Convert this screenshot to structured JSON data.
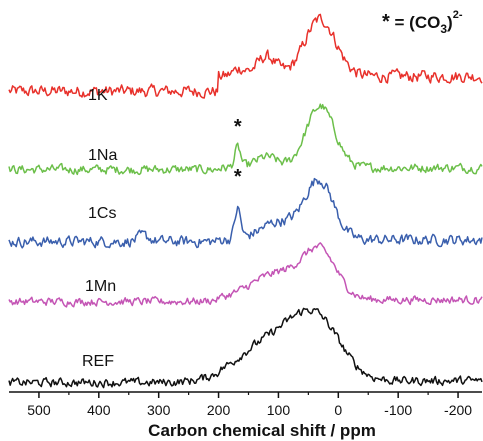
{
  "chart_data": {
    "type": "line",
    "xlabel": "Carbon chemical shift /  ppm",
    "xlim": [
      550,
      -240
    ],
    "x_ticks": [
      500,
      400,
      300,
      200,
      100,
      0,
      -100,
      -200
    ],
    "x_tick_labels": [
      "500",
      "400",
      "300",
      "200",
      "100",
      "0",
      "-100",
      "-200"
    ],
    "annotation": {
      "star": "*",
      "equals": " = (CO",
      "sub": "3",
      "close": ")",
      "sup": "2-"
    },
    "series": [
      {
        "name": "1K",
        "color": "#e8312b",
        "baseline": 0.85,
        "peaks": [
          [
            30,
            2.6,
            26
          ],
          [
            120,
            0.9,
            16
          ],
          [
            165,
            0.35,
            10
          ]
        ],
        "noise": 0.42
      },
      {
        "name": "1Na",
        "color": "#6cbf4a",
        "baseline": 0.1,
        "peaks": [
          [
            30,
            2.8,
            24
          ],
          [
            120,
            0.5,
            18
          ],
          [
            168,
            0.9,
            5
          ]
        ],
        "noise": 0.32,
        "star_at": 168
      },
      {
        "name": "1Cs",
        "color": "#3a5fad",
        "baseline": 0.1,
        "peaks": [
          [
            32,
            2.7,
            24
          ],
          [
            100,
            0.8,
            30
          ],
          [
            168,
            1.35,
            5
          ],
          [
            325,
            0.25,
            10
          ]
        ],
        "noise": 0.38,
        "star_at": 168
      },
      {
        "name": "1Mn",
        "color": "#c455b5",
        "baseline": 0.1,
        "peaks": [
          [
            30,
            2.0,
            28
          ],
          [
            100,
            1.2,
            45
          ]
        ],
        "noise": 0.28
      },
      {
        "name": "REF",
        "color": "#111111",
        "baseline": 0.1,
        "peaks": [
          [
            35,
            2.4,
            40
          ],
          [
            110,
            1.8,
            55
          ]
        ],
        "noise": 0.3
      }
    ]
  }
}
